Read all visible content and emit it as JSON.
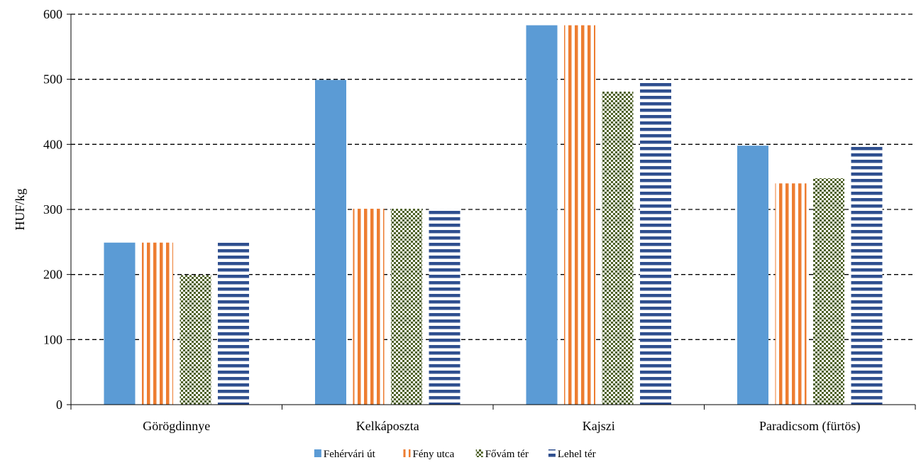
{
  "chart_data": {
    "type": "bar",
    "ylabel": "HUF/kg",
    "xlabel": "",
    "ylim": [
      0,
      600
    ],
    "yticks": [
      0,
      100,
      200,
      300,
      400,
      500,
      600
    ],
    "grid": "horizontal dashed",
    "legend_position": "bottom",
    "categories": [
      "Görögdinnye",
      "Kelkáposzta",
      "Kajszi",
      "Paradicsom (fürtös)"
    ],
    "series": [
      {
        "name": "Fehérvári út",
        "pattern": "solid",
        "color": "#5b9bd5",
        "values": [
          249,
          499,
          583,
          398
        ]
      },
      {
        "name": "Fény utca",
        "pattern": "vertical-stripes",
        "color": "#ed7d31",
        "values": [
          249,
          301,
          583,
          340
        ]
      },
      {
        "name": "Fővám tér",
        "pattern": "checkerboard",
        "color": "#4f6228",
        "values": [
          199,
          301,
          481,
          348
        ]
      },
      {
        "name": "Lehel tér",
        "pattern": "horizontal-stripes",
        "color": "#2f4f8f",
        "values": [
          249,
          301,
          499,
          398
        ]
      }
    ]
  }
}
